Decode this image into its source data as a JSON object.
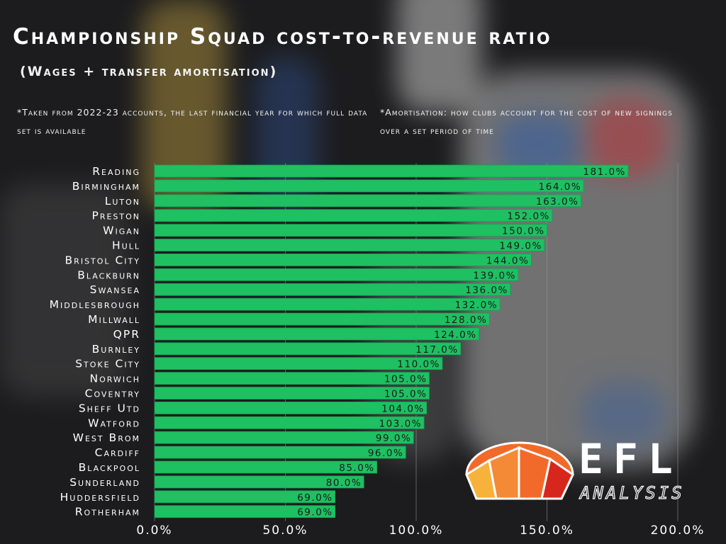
{
  "header": {
    "title": "Championship Squad cost-to-revenue ratio",
    "subtitle": "(Wages + transfer amortisation)",
    "note_left": "*Taken from 2022-23 accounts, the last financial year for which full data set is available",
    "note_right": "*Amortisation: how clubs account for the cost of new signings over a set period of time"
  },
  "logo": {
    "text": "EFL",
    "subtext": "ANALYSIS"
  },
  "colors": {
    "bar": "#1ec062",
    "bar_stroke": "#15a04f",
    "gridline": "#9a9a9a",
    "text": "#ffffff",
    "logo_orange": "#f26a2a",
    "logo_red": "#d7271c",
    "logo_yellow": "#f7b23b"
  },
  "chart_data": {
    "type": "bar",
    "orientation": "horizontal",
    "categories": [
      "Reading",
      "Birmingham",
      "Luton",
      "Preston",
      "Wigan",
      "Hull",
      "Bristol City",
      "Blackburn",
      "Swansea",
      "Middlesbrough",
      "Millwall",
      "QPR",
      "Burnley",
      "Stoke City",
      "Norwich",
      "Coventry",
      "Sheff Utd",
      "Watford",
      "West Brom",
      "Cardiff",
      "Blackpool",
      "Sunderland",
      "Huddersfield",
      "Rotherham"
    ],
    "values": [
      181.0,
      164.0,
      163.0,
      152.0,
      150.0,
      149.0,
      144.0,
      139.0,
      136.0,
      132.0,
      128.0,
      124.0,
      117.0,
      110.0,
      105.0,
      105.0,
      104.0,
      103.0,
      99.0,
      96.0,
      85.0,
      80.0,
      69.0,
      69.0
    ],
    "data_labels": [
      "181.0%",
      "164.0%",
      "163.0%",
      "152.0%",
      "150.0%",
      "149.0%",
      "144.0%",
      "139.0%",
      "136.0%",
      "132.0%",
      "128.0%",
      "124.0%",
      "117.0%",
      "110.0%",
      "105.0%",
      "105.0%",
      "104.0%",
      "103.0%",
      "99.0%",
      "96.0%",
      "85.0%",
      "80.0%",
      "69.0%",
      "69.0%"
    ],
    "xlim": [
      0,
      200
    ],
    "x_ticks": [
      0,
      50,
      100,
      150,
      200
    ],
    "x_tick_labels": [
      "0.0%",
      "50.0%",
      "100.0%",
      "150.0%",
      "200.0%"
    ],
    "grid": true,
    "title": "Championship Squad cost-to-revenue ratio",
    "xlabel": "",
    "ylabel": ""
  }
}
